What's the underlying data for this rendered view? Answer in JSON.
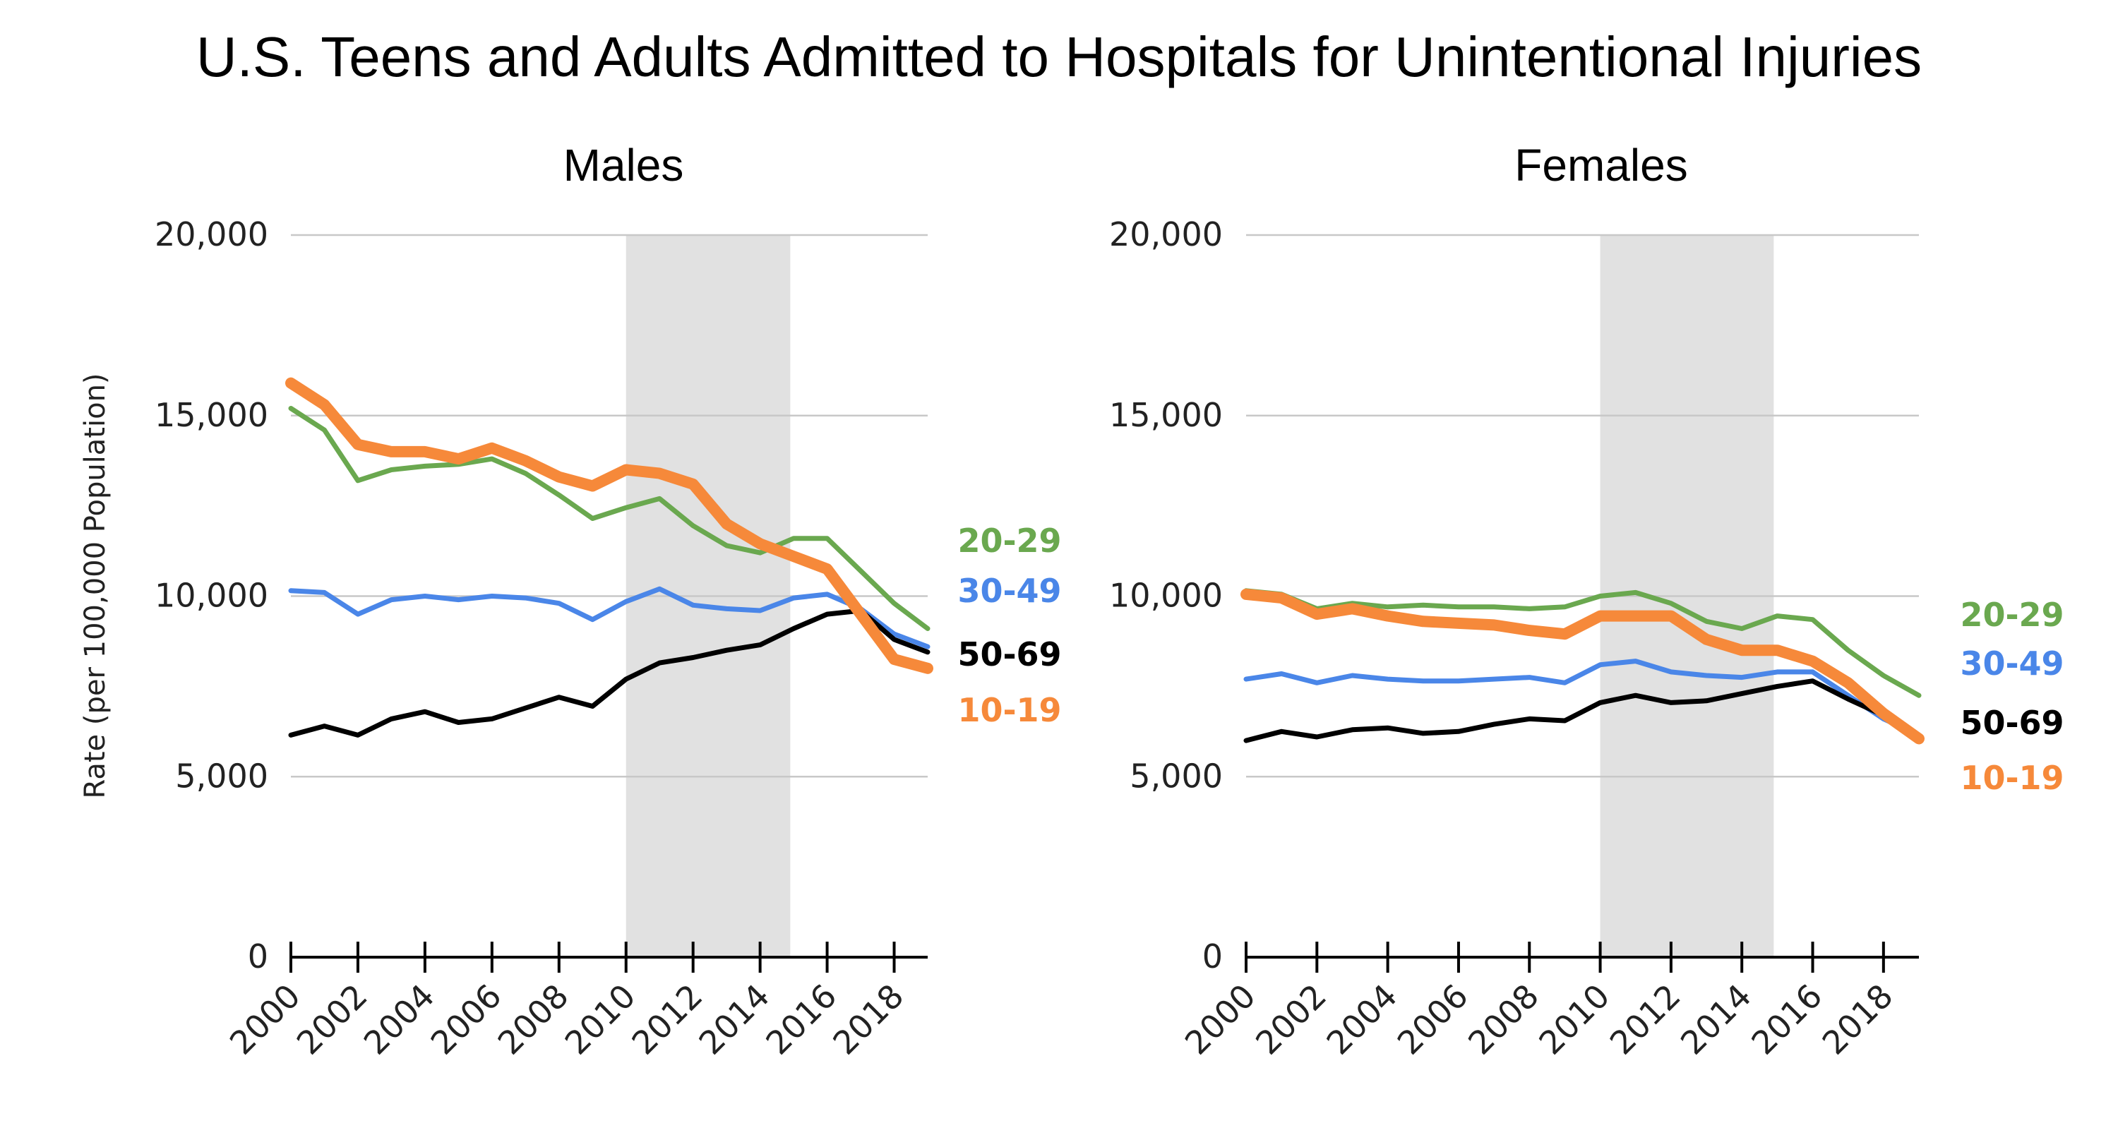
{
  "title": "U.S. Teens and Adults Admitted to Hospitals for Unintentional Injuries",
  "ylabel": "Rate (per 100,000 Population)",
  "colors": {
    "20-29": "#6aa84f",
    "30-49": "#4a86e8",
    "50-69": "#000000",
    "10-19": "#f6893a",
    "shade": "#e1e1e1",
    "grid": "#c8c8c8"
  },
  "chart_data": [
    {
      "type": "line",
      "subtitle": "Males",
      "x": [
        2000,
        2001,
        2002,
        2003,
        2004,
        2005,
        2006,
        2007,
        2008,
        2009,
        2010,
        2011,
        2012,
        2013,
        2014,
        2015,
        2016,
        2017,
        2018,
        2019
      ],
      "xticks": [
        "2000",
        "2002",
        "2004",
        "2006",
        "2008",
        "2010",
        "2012",
        "2014",
        "2016",
        "2018"
      ],
      "yticks": [
        "0",
        "5,000",
        "10,000",
        "15,000",
        "20,000"
      ],
      "ylim": [
        0,
        20000
      ],
      "shaded_range": [
        2010,
        2014.9
      ],
      "series": [
        {
          "name": "20-29",
          "values": [
            15200,
            14600,
            13200,
            13500,
            13600,
            13650,
            13800,
            13400,
            12800,
            12150,
            12450,
            12700,
            11950,
            11400,
            11200,
            11600,
            11600,
            10700,
            9800,
            9100
          ]
        },
        {
          "name": "30-49",
          "values": [
            10150,
            10100,
            9500,
            9900,
            10000,
            9900,
            10000,
            9950,
            9800,
            9350,
            9850,
            10200,
            9750,
            9650,
            9600,
            9950,
            10050,
            9650,
            8950,
            8600
          ]
        },
        {
          "name": "50-69",
          "values": [
            6150,
            6400,
            6150,
            6600,
            6800,
            6500,
            6600,
            6900,
            7200,
            6950,
            7700,
            8150,
            8300,
            8500,
            8650,
            9100,
            9500,
            9600,
            8800,
            8450
          ]
        },
        {
          "name": "10-19",
          "values": [
            15900,
            15300,
            14200,
            14000,
            14000,
            13800,
            14100,
            13750,
            13300,
            13050,
            13500,
            13400,
            13100,
            12000,
            11450,
            11100,
            10750,
            9500,
            8250,
            8000
          ]
        }
      ],
      "end_labels": [
        "20-29",
        "30-49",
        "50-69",
        "10-19"
      ]
    },
    {
      "type": "line",
      "subtitle": "Females",
      "x": [
        2000,
        2001,
        2002,
        2003,
        2004,
        2005,
        2006,
        2007,
        2008,
        2009,
        2010,
        2011,
        2012,
        2013,
        2014,
        2015,
        2016,
        2017,
        2018,
        2019
      ],
      "xticks": [
        "2000",
        "2002",
        "2004",
        "2006",
        "2008",
        "2010",
        "2012",
        "2014",
        "2016",
        "2018"
      ],
      "yticks": [
        "0",
        "5,000",
        "10,000",
        "15,000",
        "20,000"
      ],
      "ylim": [
        0,
        20000
      ],
      "shaded_range": [
        2010,
        2014.9
      ],
      "series": [
        {
          "name": "20-29",
          "values": [
            10150,
            10050,
            9650,
            9800,
            9700,
            9750,
            9700,
            9700,
            9650,
            9700,
            10000,
            10100,
            9800,
            9300,
            9100,
            9450,
            9350,
            8500,
            7800,
            7250
          ]
        },
        {
          "name": "30-49",
          "values": [
            7700,
            7850,
            7600,
            7800,
            7700,
            7650,
            7650,
            7700,
            7750,
            7600,
            8100,
            8200,
            7900,
            7800,
            7750,
            7900,
            7900,
            7250,
            6600,
            6150
          ]
        },
        {
          "name": "50-69",
          "values": [
            6000,
            6250,
            6100,
            6300,
            6350,
            6200,
            6250,
            6450,
            6600,
            6550,
            7050,
            7250,
            7050,
            7100,
            7300,
            7500,
            7650,
            7150,
            6700,
            6150
          ]
        },
        {
          "name": "10-19",
          "values": [
            10050,
            9950,
            9500,
            9650,
            9450,
            9300,
            9250,
            9200,
            9050,
            8950,
            9450,
            9450,
            9450,
            8800,
            8500,
            8500,
            8200,
            7600,
            6750,
            6050
          ]
        }
      ],
      "end_labels": [
        "20-29",
        "30-49",
        "50-69",
        "10-19"
      ]
    }
  ]
}
